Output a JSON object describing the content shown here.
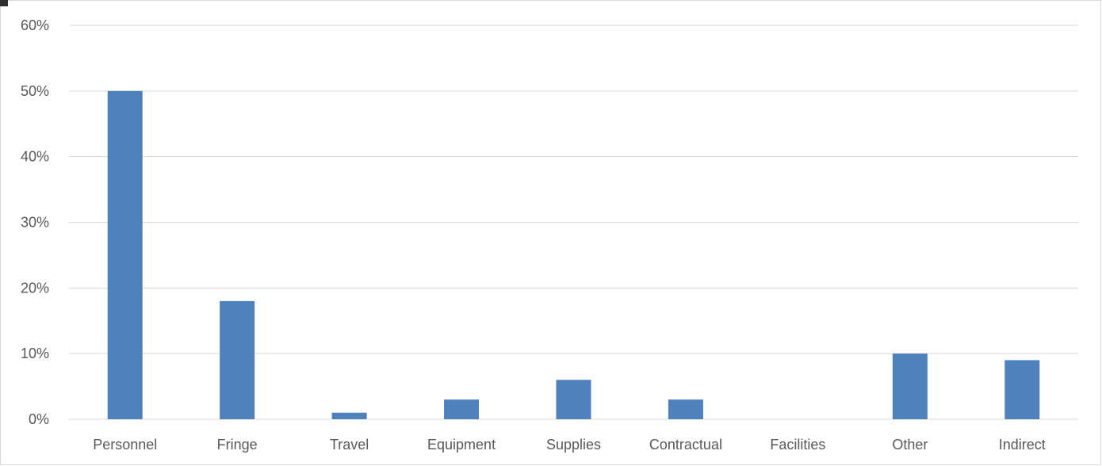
{
  "chart_data": {
    "type": "bar",
    "title": "",
    "xlabel": "",
    "ylabel": "",
    "categories": [
      "Personnel",
      "Fringe",
      "Travel",
      "Equipment",
      "Supplies",
      "Contractual",
      "Facilities",
      "Other",
      "Indirect"
    ],
    "values": [
      50,
      18,
      1,
      3,
      6,
      3,
      0,
      10,
      9
    ],
    "ylim": [
      0,
      60
    ],
    "yticks": [
      0,
      10,
      20,
      30,
      40,
      50,
      60
    ],
    "ytick_labels": [
      "0%",
      "10%",
      "20%",
      "30%",
      "40%",
      "50%",
      "60%"
    ],
    "grid": true,
    "legend": "none",
    "bar_color": "#4f81bd",
    "grid_color": "#d9d9d9"
  }
}
